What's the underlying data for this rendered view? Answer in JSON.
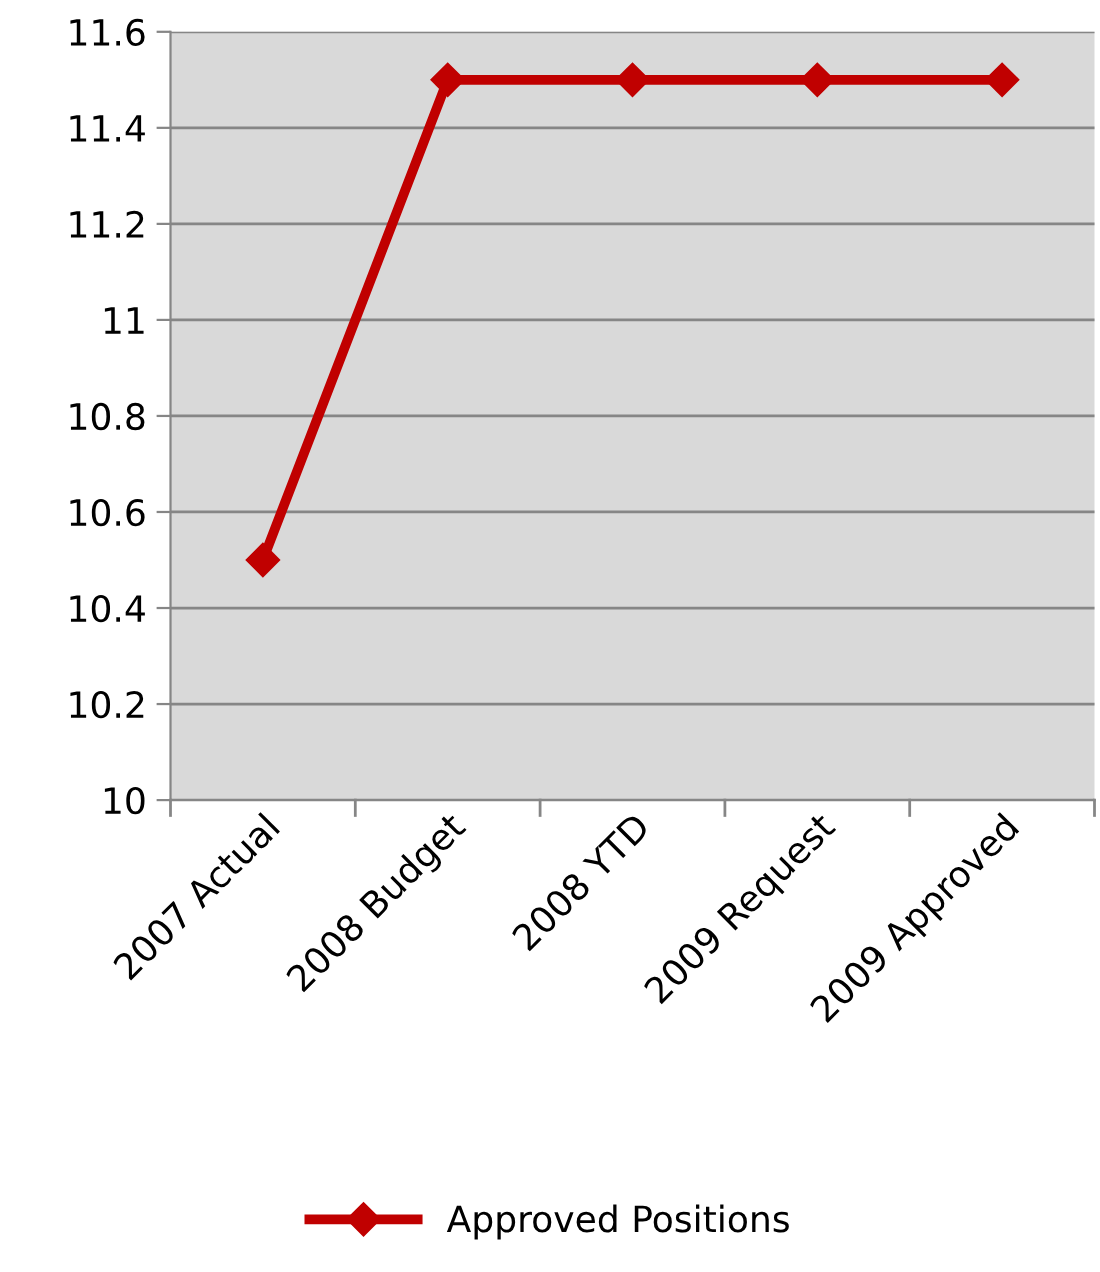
{
  "chart_data": {
    "type": "line",
    "categories": [
      "2007 Actual",
      "2008 Budget",
      "2008 YTD",
      "2009 Request",
      "2009 Approved"
    ],
    "series": [
      {
        "name": "Approved Positions",
        "color": "#c00000",
        "values": [
          10.5,
          11.5,
          11.5,
          11.5,
          11.5
        ]
      }
    ],
    "ylim": [
      10,
      11.6
    ],
    "yticks": [
      10,
      10.2,
      10.4,
      10.6,
      10.8,
      11,
      11.2,
      11.4,
      11.6
    ],
    "grid": "y",
    "legend": "bottom",
    "marker": "diamond",
    "line_style": "solid"
  }
}
